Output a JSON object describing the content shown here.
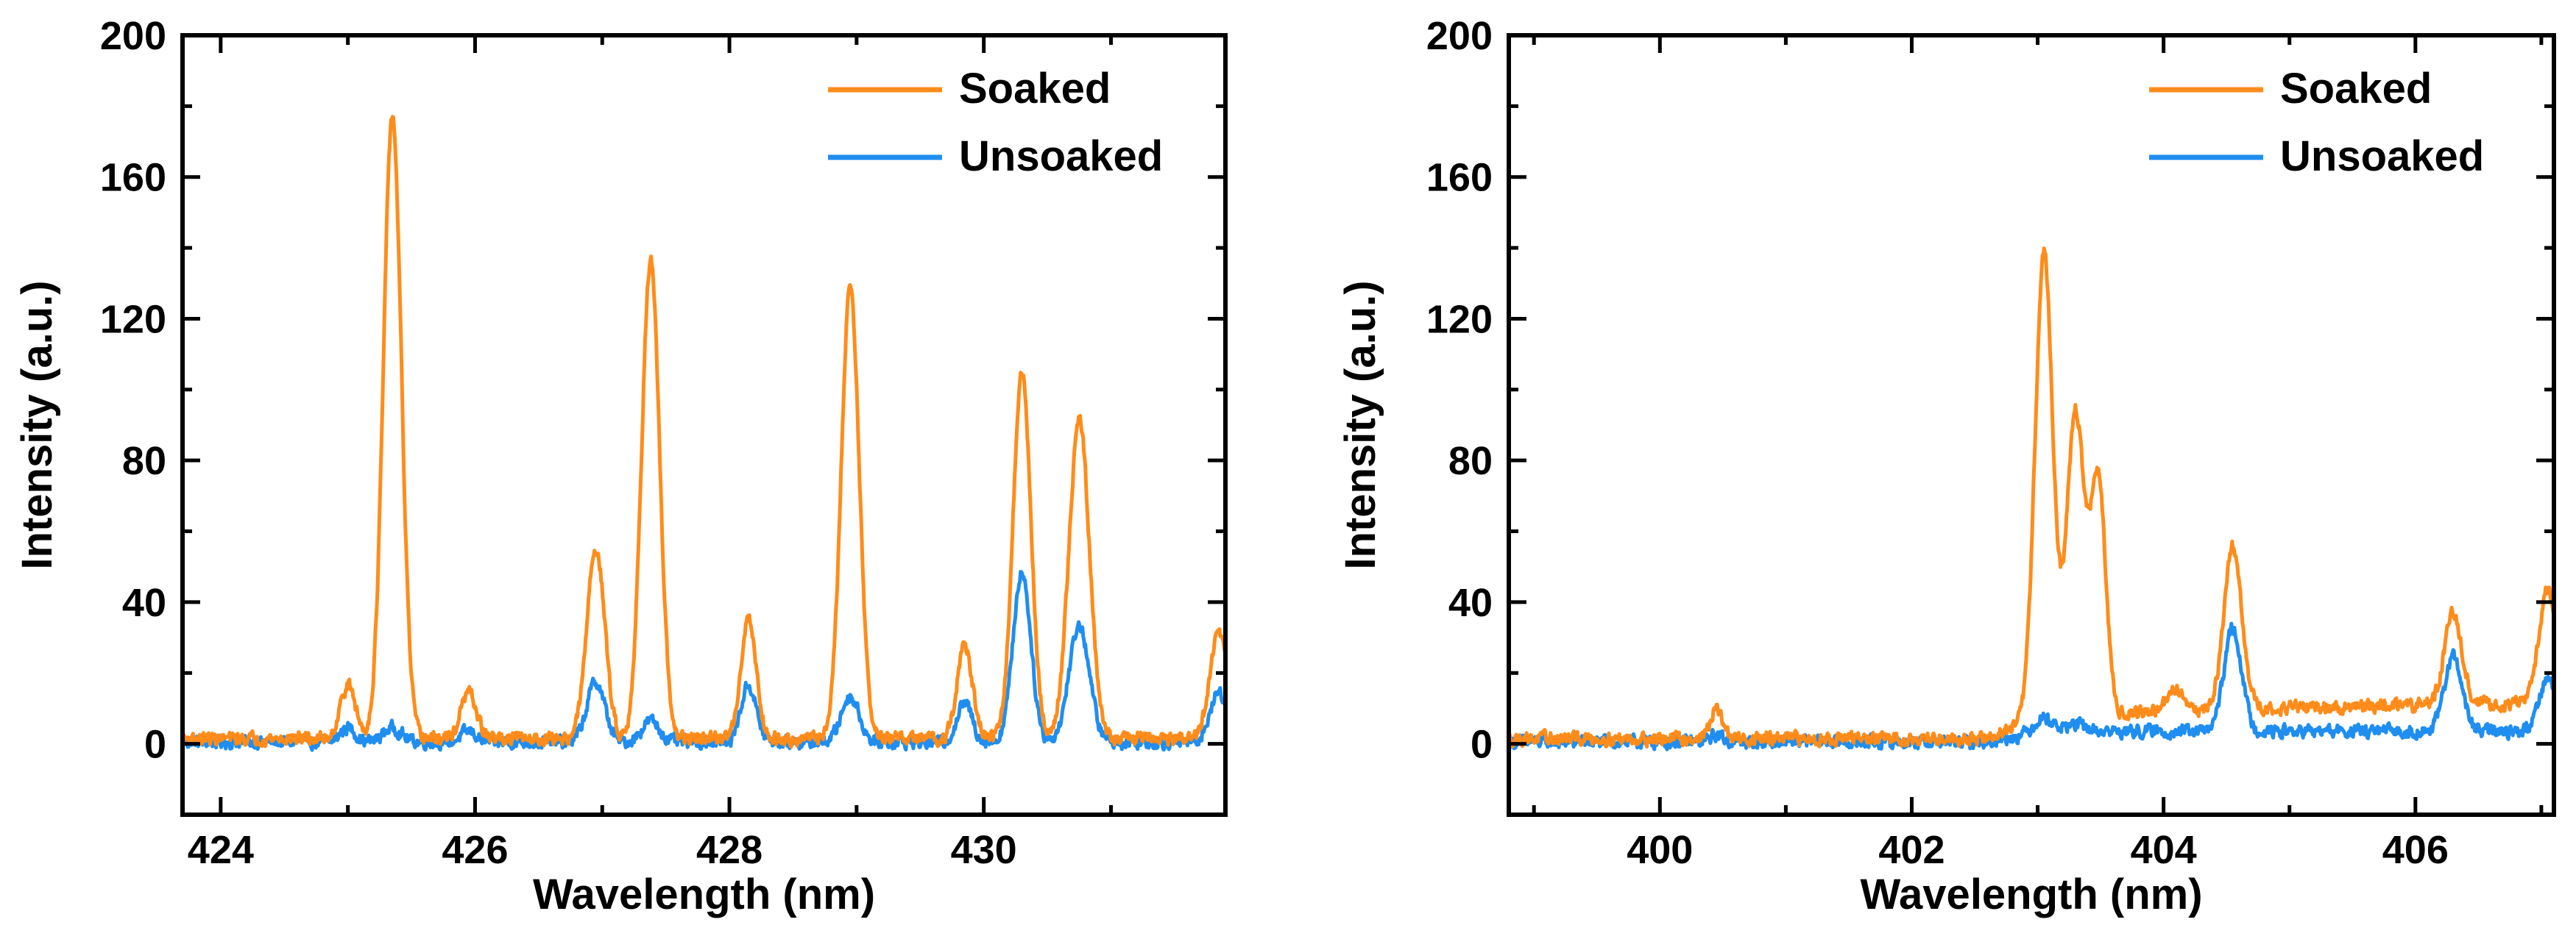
{
  "colors": {
    "soaked": "#ff8c1a",
    "unsoaked": "#1f8ef0",
    "axis": "#000000"
  },
  "chart_data": [
    {
      "type": "line",
      "xlabel": "Wavelength (nm)",
      "ylabel": "Intensity (a.u.)",
      "xlim": [
        423.7,
        431.9
      ],
      "ylim": [
        -20,
        200
      ],
      "xticks": [
        424,
        426,
        428,
        430
      ],
      "xtick_labels": [
        "424",
        "426",
        "428",
        "430"
      ],
      "xminor": [
        425,
        427,
        429,
        431
      ],
      "yticks": [
        0,
        40,
        80,
        120,
        160,
        200
      ],
      "ytick_labels": [
        "0",
        "40",
        "80",
        "120",
        "160",
        "200"
      ],
      "yminor": [
        -20,
        20,
        60,
        100,
        140,
        180
      ],
      "legend": {
        "position": "top-right",
        "entries": [
          "Soaked",
          "Unsoaked"
        ]
      },
      "series": [
        {
          "name": "Soaked",
          "color": "#ff8c1a",
          "baseline": 1.5,
          "peaks": [
            [
              425.0,
              15,
              0.06
            ],
            [
              425.35,
              176,
              0.07
            ],
            [
              425.95,
              13,
              0.06
            ],
            [
              426.95,
              54,
              0.07
            ],
            [
              427.38,
              135,
              0.07
            ],
            [
              428.15,
              34,
              0.06
            ],
            [
              428.95,
              128,
              0.07
            ],
            [
              429.85,
              26,
              0.06
            ],
            [
              430.3,
              103,
              0.07
            ],
            [
              430.75,
              90,
              0.08
            ],
            [
              431.85,
              30,
              0.07
            ]
          ]
        },
        {
          "name": "Unsoaked",
          "color": "#1f8ef0",
          "baseline": 0.5,
          "peaks": [
            [
              425.0,
              4,
              0.06
            ],
            [
              425.35,
              4,
              0.07
            ],
            [
              425.95,
              3,
              0.06
            ],
            [
              426.95,
              17,
              0.07
            ],
            [
              427.38,
              6,
              0.07
            ],
            [
              428.15,
              16,
              0.06
            ],
            [
              428.95,
              13,
              0.07
            ],
            [
              429.85,
              11,
              0.06
            ],
            [
              430.3,
              48,
              0.07
            ],
            [
              430.75,
              33,
              0.08
            ],
            [
              431.85,
              14,
              0.07
            ]
          ]
        }
      ]
    },
    {
      "type": "line",
      "xlabel": "Wavelength (nm)",
      "ylabel": "Intensity (a.u.)",
      "xlim": [
        398.8,
        407.1
      ],
      "ylim": [
        -20,
        200
      ],
      "xticks": [
        400,
        402,
        404,
        406
      ],
      "xtick_labels": [
        "400",
        "402",
        "404",
        "406"
      ],
      "xminor": [
        399,
        401,
        403,
        405,
        407
      ],
      "yticks": [
        0,
        40,
        80,
        120,
        160,
        200
      ],
      "ytick_labels": [
        "0",
        "40",
        "80",
        "120",
        "160",
        "200"
      ],
      "yminor": [
        -20,
        20,
        60,
        100,
        140,
        180
      ],
      "legend": {
        "position": "top-right",
        "entries": [
          "Soaked",
          "Unsoaked"
        ]
      },
      "series": [
        {
          "name": "Soaked",
          "color": "#ff8c1a",
          "baseline": 1.5,
          "ramp": [
            [
              402.6,
              0
            ],
            [
              402.95,
              5
            ],
            [
              404.0,
              8
            ],
            [
              406.9,
              10
            ]
          ],
          "peaks": [
            [
              400.45,
              8,
              0.05
            ],
            [
              403.05,
              132,
              0.07
            ],
            [
              403.3,
              86,
              0.07
            ],
            [
              403.48,
              66,
              0.06
            ],
            [
              404.1,
              6,
              0.06
            ],
            [
              404.55,
              46,
              0.07
            ],
            [
              406.3,
              26,
              0.07
            ],
            [
              407.05,
              32,
              0.07
            ]
          ]
        },
        {
          "name": "Unsoaked",
          "color": "#1f8ef0",
          "baseline": 0.5,
          "ramp": [
            [
              402.6,
              0
            ],
            [
              403.0,
              3
            ],
            [
              406.9,
              3
            ]
          ],
          "peaks": [
            [
              400.45,
              2,
              0.05
            ],
            [
              403.05,
              4,
              0.07
            ],
            [
              403.3,
              2,
              0.07
            ],
            [
              404.55,
              29,
              0.07
            ],
            [
              406.3,
              21,
              0.07
            ],
            [
              407.05,
              15,
              0.07
            ]
          ]
        }
      ]
    }
  ]
}
